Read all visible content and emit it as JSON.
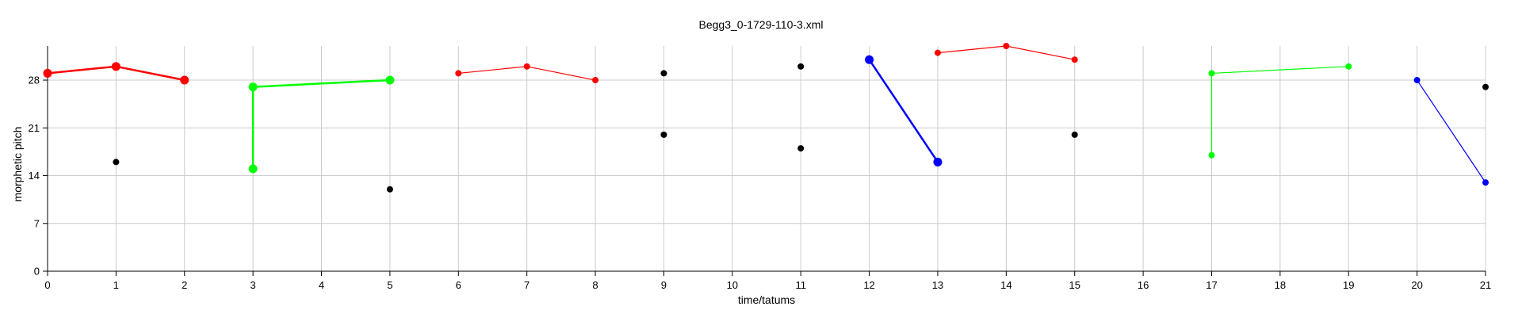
{
  "chart_data": {
    "type": "scatter",
    "title": "Begg3_0-1729-110-3.xml",
    "xlabel": "time/tatums",
    "ylabel": "morphetic pitch",
    "xlim": [
      0,
      21
    ],
    "ylim": [
      0,
      33
    ],
    "xticks": [
      0,
      1,
      2,
      3,
      4,
      5,
      6,
      7,
      8,
      9,
      10,
      11,
      12,
      13,
      14,
      15,
      16,
      17,
      18,
      19,
      20,
      21
    ],
    "yticks": [
      0,
      7,
      14,
      21,
      28
    ],
    "grid": true,
    "series": [
      {
        "color": "#ff0000",
        "linestyle": "thick",
        "connected": true,
        "points": [
          [
            0,
            29
          ],
          [
            1,
            30
          ],
          [
            2,
            28
          ]
        ]
      },
      {
        "color": "#00ff00",
        "linestyle": "thick",
        "connected": true,
        "points": [
          [
            3,
            15
          ],
          [
            3,
            27
          ],
          [
            5,
            28
          ]
        ]
      },
      {
        "color": "#ff0000",
        "linestyle": "thin",
        "connected": true,
        "points": [
          [
            6,
            29
          ],
          [
            7,
            30
          ],
          [
            8,
            28
          ]
        ]
      },
      {
        "color": "#0000ff",
        "linestyle": "thick",
        "connected": true,
        "points": [
          [
            12,
            31
          ],
          [
            13,
            16
          ]
        ]
      },
      {
        "color": "#ff0000",
        "linestyle": "thin",
        "connected": true,
        "points": [
          [
            13,
            32
          ],
          [
            14,
            33
          ],
          [
            15,
            31
          ]
        ]
      },
      {
        "color": "#00ff00",
        "linestyle": "thin",
        "connected": true,
        "points": [
          [
            17,
            17
          ],
          [
            17,
            29
          ],
          [
            19,
            30
          ]
        ]
      },
      {
        "color": "#0000ff",
        "linestyle": "thin",
        "connected": true,
        "points": [
          [
            20,
            28
          ],
          [
            21,
            13
          ]
        ]
      },
      {
        "color": "#000000",
        "linestyle": "none",
        "connected": false,
        "points": [
          [
            1,
            16
          ],
          [
            5,
            12
          ],
          [
            9,
            29
          ],
          [
            9,
            20
          ],
          [
            11,
            30
          ],
          [
            11,
            18
          ],
          [
            15,
            20
          ],
          [
            21,
            27
          ]
        ]
      }
    ]
  }
}
